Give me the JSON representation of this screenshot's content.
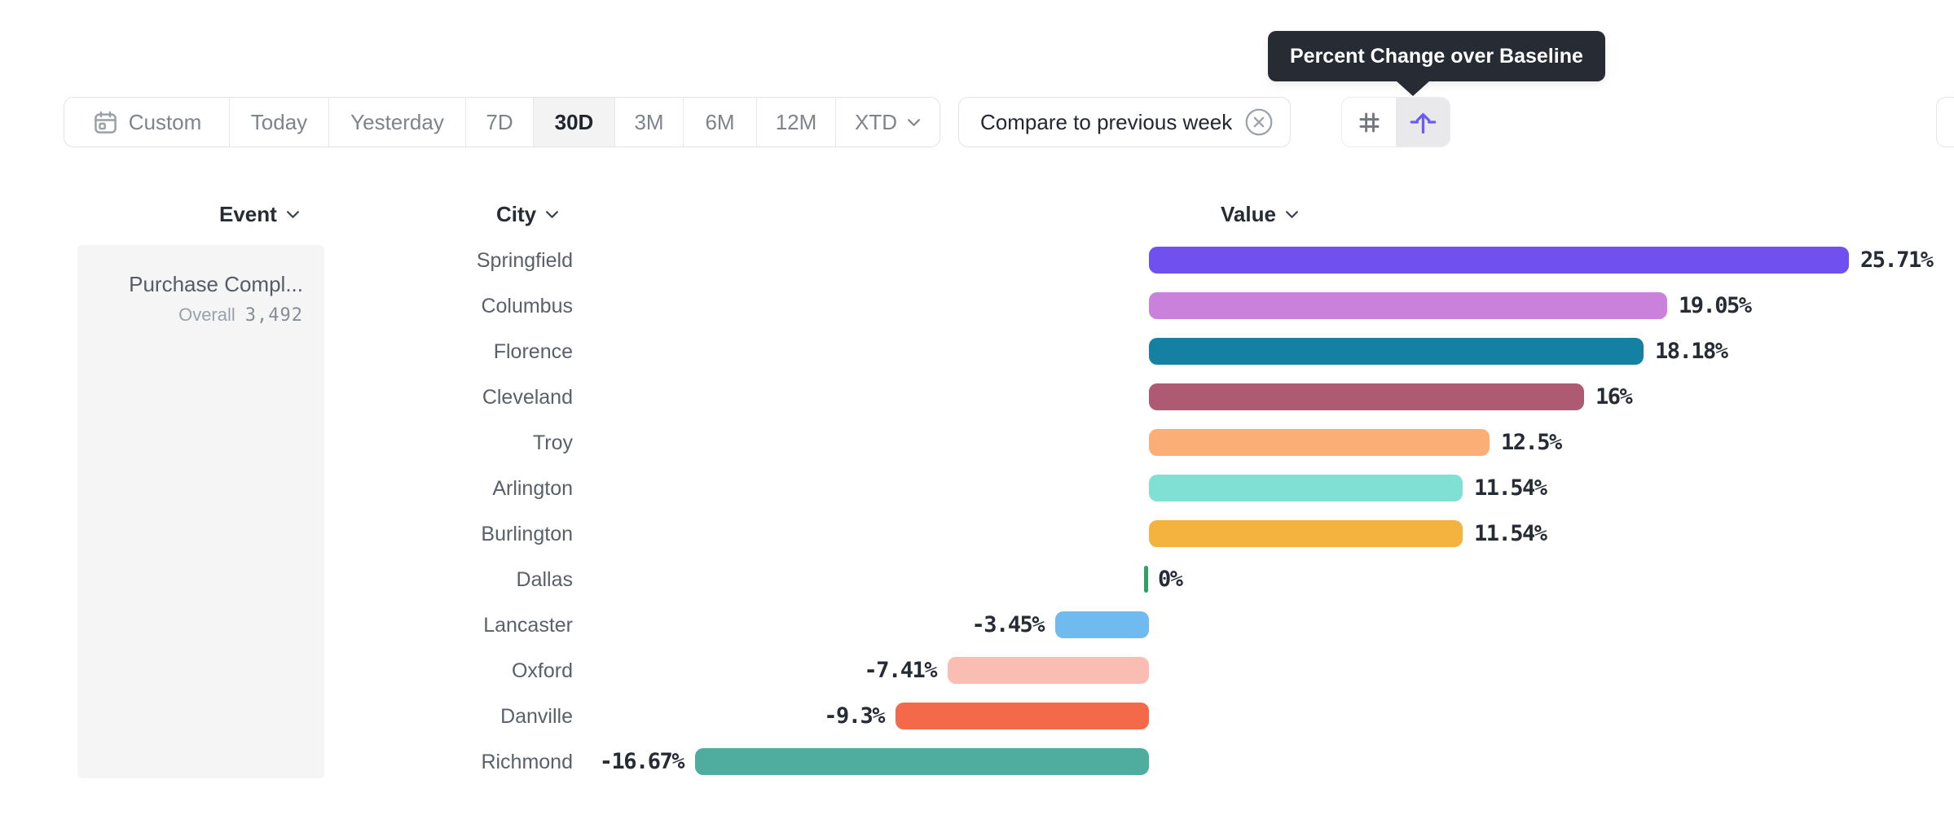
{
  "tooltip": {
    "text": "Percent Change over Baseline"
  },
  "toolbar": {
    "date_ranges": [
      {
        "label": "Custom",
        "selected": false,
        "icon": "calendar"
      },
      {
        "label": "Today",
        "selected": false
      },
      {
        "label": "Yesterday",
        "selected": false
      },
      {
        "label": "7D",
        "selected": false
      },
      {
        "label": "30D",
        "selected": true
      },
      {
        "label": "3M",
        "selected": false
      },
      {
        "label": "6M",
        "selected": false
      },
      {
        "label": "12M",
        "selected": false
      },
      {
        "label": "XTD",
        "selected": false,
        "has_dropdown": true
      }
    ],
    "compare_chip": {
      "label": "Compare to previous week",
      "icon": "circle-x"
    },
    "view_toggle": {
      "options": [
        {
          "name": "raw-numbers",
          "icon": "hash",
          "selected": false
        },
        {
          "name": "percent-change-over-baseline",
          "icon": "arrow-up-from-baseline",
          "selected": true
        }
      ]
    }
  },
  "table_headers": {
    "event": "Event",
    "city": "City",
    "value": "Value"
  },
  "event_panel": {
    "title": "Purchase Compl...",
    "overall_label": "Overall",
    "overall_value": "3,492"
  },
  "chart_data": {
    "type": "bar",
    "orientation": "horizontal",
    "metric": "Percent Change over Baseline",
    "event": "Purchase Compl...",
    "overall_value": "3,492",
    "categories": [
      "Springfield",
      "Columbus",
      "Florence",
      "Cleveland",
      "Troy",
      "Arlington",
      "Burlington",
      "Dallas",
      "Lancaster",
      "Oxford",
      "Danville",
      "Richmond"
    ],
    "values": [
      25.71,
      19.05,
      18.18,
      16,
      12.5,
      11.54,
      11.54,
      0,
      -3.45,
      -7.41,
      -9.3,
      -16.67
    ],
    "value_labels": [
      "25.71%",
      "19.05%",
      "18.18%",
      "16%",
      "12.5%",
      "11.54%",
      "11.54%",
      "0%",
      "-3.45%",
      "-7.41%",
      "-9.3%",
      "-16.67%"
    ],
    "bar_colors": [
      "#7150f0",
      "#c981dc",
      "#1480a2",
      "#ad5a72",
      "#fcae77",
      "#80e0d3",
      "#f4b23e",
      "#2ba263",
      "#6fbaee",
      "#f9bdb4",
      "#f5694b",
      "#4ead9e"
    ],
    "baseline": 0,
    "xlim": [
      -16.67,
      25.71
    ],
    "grid": false,
    "legend": "none"
  },
  "colors": {
    "accent": "#6a5df0",
    "tooltip_bg": "#272b34",
    "selected_bg": "#f3f3f4",
    "panel_bg": "#f5f5f6",
    "border": "#e4e4e6",
    "value_text": "#262b35",
    "city_text": "#5a6069"
  }
}
